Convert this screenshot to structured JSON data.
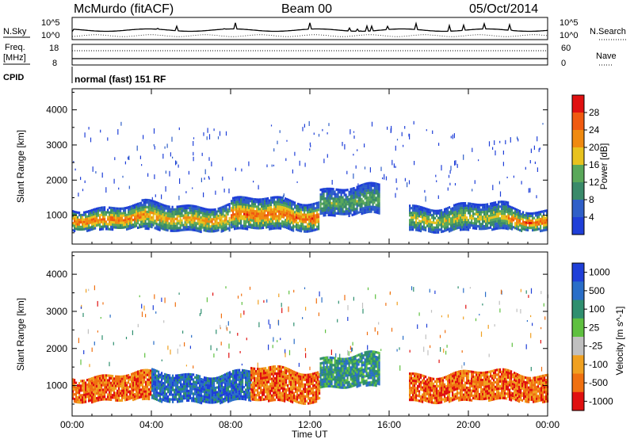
{
  "header": {
    "station": "McMurdo (fitACF)",
    "beam": "Beam 00",
    "date": "05/Oct/2014"
  },
  "noise_panel": {
    "left_label": "N.Sky",
    "right_label": "N.Search",
    "left_ticks": [
      "10^5",
      "10^0"
    ],
    "right_ticks": [
      "10^5",
      "10^0"
    ],
    "right_legend_style": "dotted"
  },
  "freq_panel": {
    "left_label": "Freq.",
    "left_unit": "[MHz]",
    "right_label": "Nave",
    "left_ticks": [
      "18",
      "8"
    ],
    "right_ticks": [
      "60",
      "0"
    ],
    "right_legend_style": "dotted"
  },
  "cpid": {
    "label": "CPID",
    "mode_text": "normal (fast) 151 RF"
  },
  "colors": {
    "power_scale": [
      "#1f3fd8",
      "#2f5fc8",
      "#3a8a6a",
      "#5aa85a",
      "#e8c21e",
      "#f08a10",
      "#f05a10",
      "#e01010"
    ],
    "velocity_scale": [
      "#1f3fd8",
      "#2a6ec8",
      "#2f8f6f",
      "#5fc040",
      "#c0c0c0",
      "#f0a020",
      "#f07010",
      "#e01010"
    ]
  },
  "chart_data": [
    {
      "type": "heatmap",
      "title": "Power",
      "xlabel": "Time UT",
      "ylabel": "Slant Range [km]",
      "x_ticks": [
        "00:00",
        "04:00",
        "08:00",
        "12:00",
        "16:00",
        "20:00",
        "00:00"
      ],
      "xlim": [
        0,
        24
      ],
      "y_ticks": [
        "1000",
        "2000",
        "3000",
        "4000"
      ],
      "ylim": [
        180,
        4600
      ],
      "colorbar": {
        "label": "Power [dB]",
        "ticks": [
          "4",
          "8",
          "12",
          "16",
          "20",
          "24",
          "28"
        ],
        "range": [
          0,
          32
        ]
      },
      "bands": [
        {
          "t_start": 0.0,
          "t_end": 3.5,
          "range_low": 600,
          "range_high": 1250,
          "power_peak": 26
        },
        {
          "t_start": 3.5,
          "t_end": 8.0,
          "range_low": 560,
          "range_high": 1320,
          "power_peak": 24
        },
        {
          "t_start": 8.0,
          "t_end": 12.5,
          "range_low": 580,
          "range_high": 1450,
          "power_peak": 28
        },
        {
          "t_start": 12.5,
          "t_end": 15.5,
          "range_low": 1000,
          "range_high": 1800,
          "power_peak": 12
        },
        {
          "t_start": 17.0,
          "t_end": 22.0,
          "range_low": 560,
          "range_high": 1300,
          "power_peak": 18
        },
        {
          "t_start": 22.0,
          "t_end": 24.0,
          "range_low": 580,
          "range_high": 1200,
          "power_peak": 26
        }
      ]
    },
    {
      "type": "heatmap",
      "title": "Velocity",
      "xlabel": "Time UT",
      "ylabel": "Slant Range [km]",
      "x_ticks": [
        "00:00",
        "04:00",
        "08:00",
        "12:00",
        "16:00",
        "20:00",
        "00:00"
      ],
      "xlim": [
        0,
        24
      ],
      "y_ticks": [
        "1000",
        "2000",
        "3000",
        "4000"
      ],
      "ylim": [
        180,
        4600
      ],
      "colorbar": {
        "label": "Velocity [m s^-1]",
        "ticks": [
          "1000",
          "500",
          "100",
          "25",
          "-25",
          "-100",
          "-500",
          "-1000"
        ]
      },
      "bands": [
        {
          "t_start": 0.0,
          "t_end": 4.0,
          "range_low": 580,
          "range_high": 1300,
          "dominant_velocity": -300
        },
        {
          "t_start": 4.0,
          "t_end": 9.0,
          "range_low": 560,
          "range_high": 1350,
          "dominant_velocity": 200
        },
        {
          "t_start": 9.0,
          "t_end": 12.5,
          "range_low": 560,
          "range_high": 1450,
          "dominant_velocity": -400
        },
        {
          "t_start": 12.5,
          "t_end": 15.5,
          "range_low": 950,
          "range_high": 1800,
          "dominant_velocity": 100
        },
        {
          "t_start": 17.0,
          "t_end": 24.0,
          "range_low": 580,
          "range_high": 1350,
          "dominant_velocity": -500
        }
      ]
    }
  ]
}
